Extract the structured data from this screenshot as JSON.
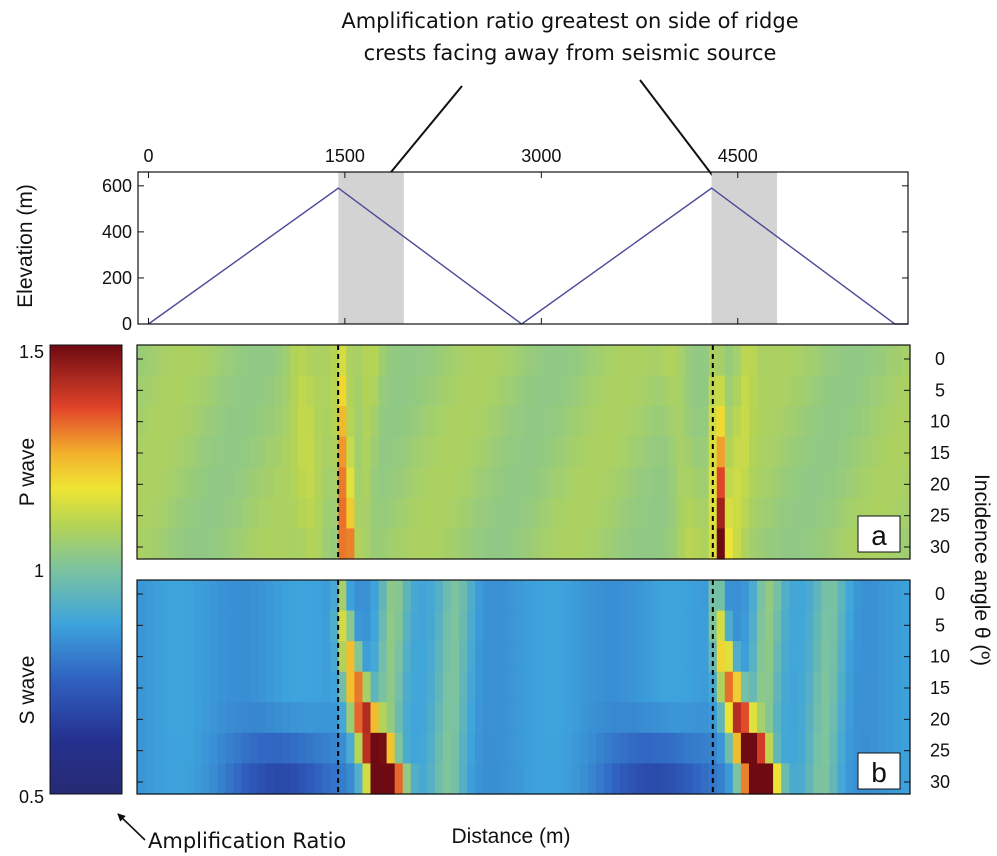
{
  "annotation": {
    "line1": "Amplification ratio greatest on side of ridge",
    "line2": "crests facing away from seismic source"
  },
  "colorbar": {
    "label": "Amplification Ratio",
    "ticks": [
      "1.5",
      "1",
      "0.5"
    ],
    "range": [
      0.5,
      1.5
    ]
  },
  "colors": {
    "profile_line": "#4a4a9a",
    "shade": "#d3d3d3",
    "dashed": "#000000"
  },
  "chart_data": [
    {
      "type": "line",
      "title": "",
      "xlabel": "",
      "ylabel": "Elevation (m)",
      "x_ticks": [
        "0",
        "1500",
        "3000",
        "4500"
      ],
      "y_ticks": [
        "0",
        "200",
        "400",
        "600"
      ],
      "xlim": [
        -80,
        5800
      ],
      "ylim": [
        0,
        660
      ],
      "series": [
        {
          "x": [
            0,
            1450,
            2850,
            4300,
            5700,
            5800
          ],
          "y": [
            0,
            590,
            0,
            590,
            0,
            0
          ]
        }
      ],
      "shaded_regions": [
        [
          1450,
          1950
        ],
        [
          4300,
          4800
        ]
      ],
      "legend_placement": "none"
    },
    {
      "type": "heatmap",
      "panel_label": "a",
      "row_label": "P wave",
      "xlabel": "Distance (m)",
      "ylabel": "Incidence angle θ (º)",
      "y_ticks": [
        "0",
        "5",
        "10",
        "15",
        "20",
        "25",
        "30"
      ],
      "ylim": [
        0,
        30
      ],
      "value_range": [
        0.5,
        1.5
      ],
      "ridge_crests_x": [
        1450,
        4300
      ]
    },
    {
      "type": "heatmap",
      "panel_label": "b",
      "row_label": "S wave",
      "xlabel": "Distance (m)",
      "ylabel": "Incidence angle θ (º)",
      "y_ticks": [
        "0",
        "5",
        "10",
        "15",
        "20",
        "25",
        "30"
      ],
      "ylim": [
        0,
        30
      ],
      "value_range": [
        0.5,
        1.5
      ],
      "ridge_crests_x": [
        1450,
        4300
      ]
    }
  ]
}
